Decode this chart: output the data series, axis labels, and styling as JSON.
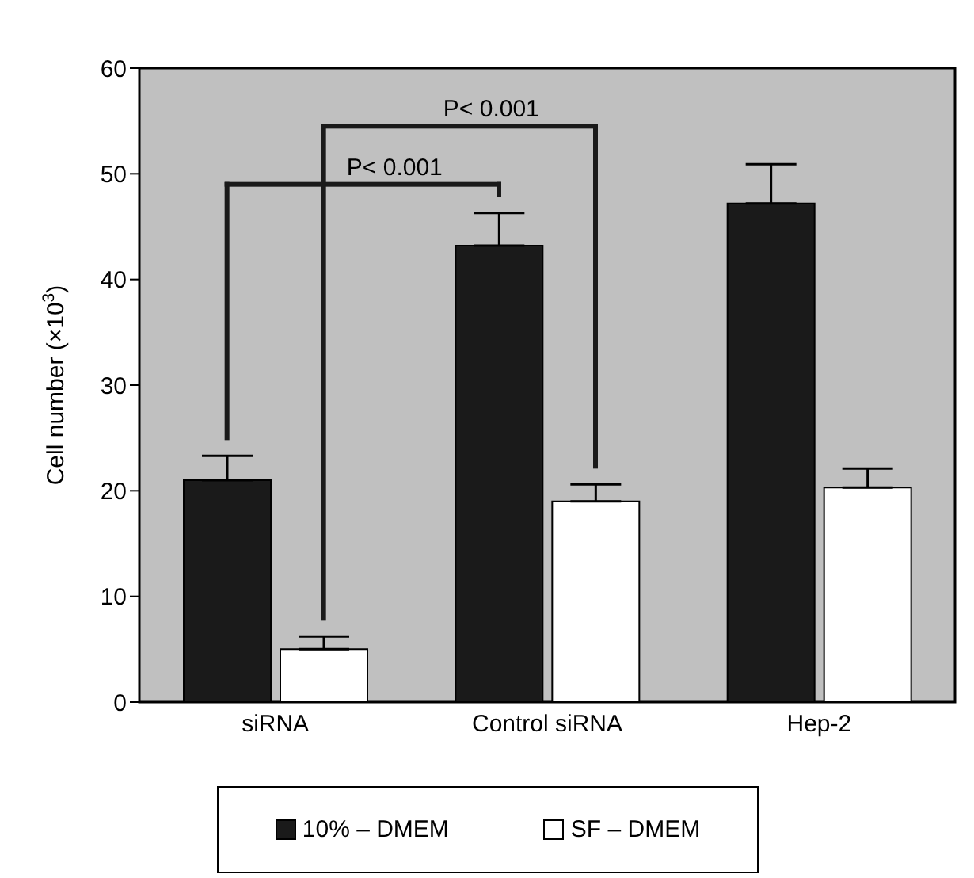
{
  "chart_data": {
    "type": "bar",
    "ylabel": "Cell number (×10$^{3}$)",
    "categories": [
      "siRNA",
      "Control siRNA",
      "Hep-2"
    ],
    "series": [
      {
        "name": "10% – DMEM",
        "color": "#1a1a1a",
        "values": [
          21,
          43.2,
          47.2
        ],
        "errors": [
          [
            21,
            23.3
          ],
          [
            43.2,
            46.3
          ],
          [
            47.2,
            50.9
          ]
        ]
      },
      {
        "name": "SF – DMEM",
        "color": "#ffffff",
        "values": [
          5,
          19,
          20.3
        ],
        "errors": [
          [
            5,
            6.2
          ],
          [
            19,
            20.6
          ],
          [
            20.3,
            22.1
          ]
        ]
      }
    ],
    "ylim": [
      0,
      60
    ],
    "yticks": [
      0,
      10,
      20,
      30,
      40,
      50,
      60
    ],
    "legend": "bottom",
    "annotations": [
      "P< 0.001",
      "P< 0.001"
    ]
  }
}
